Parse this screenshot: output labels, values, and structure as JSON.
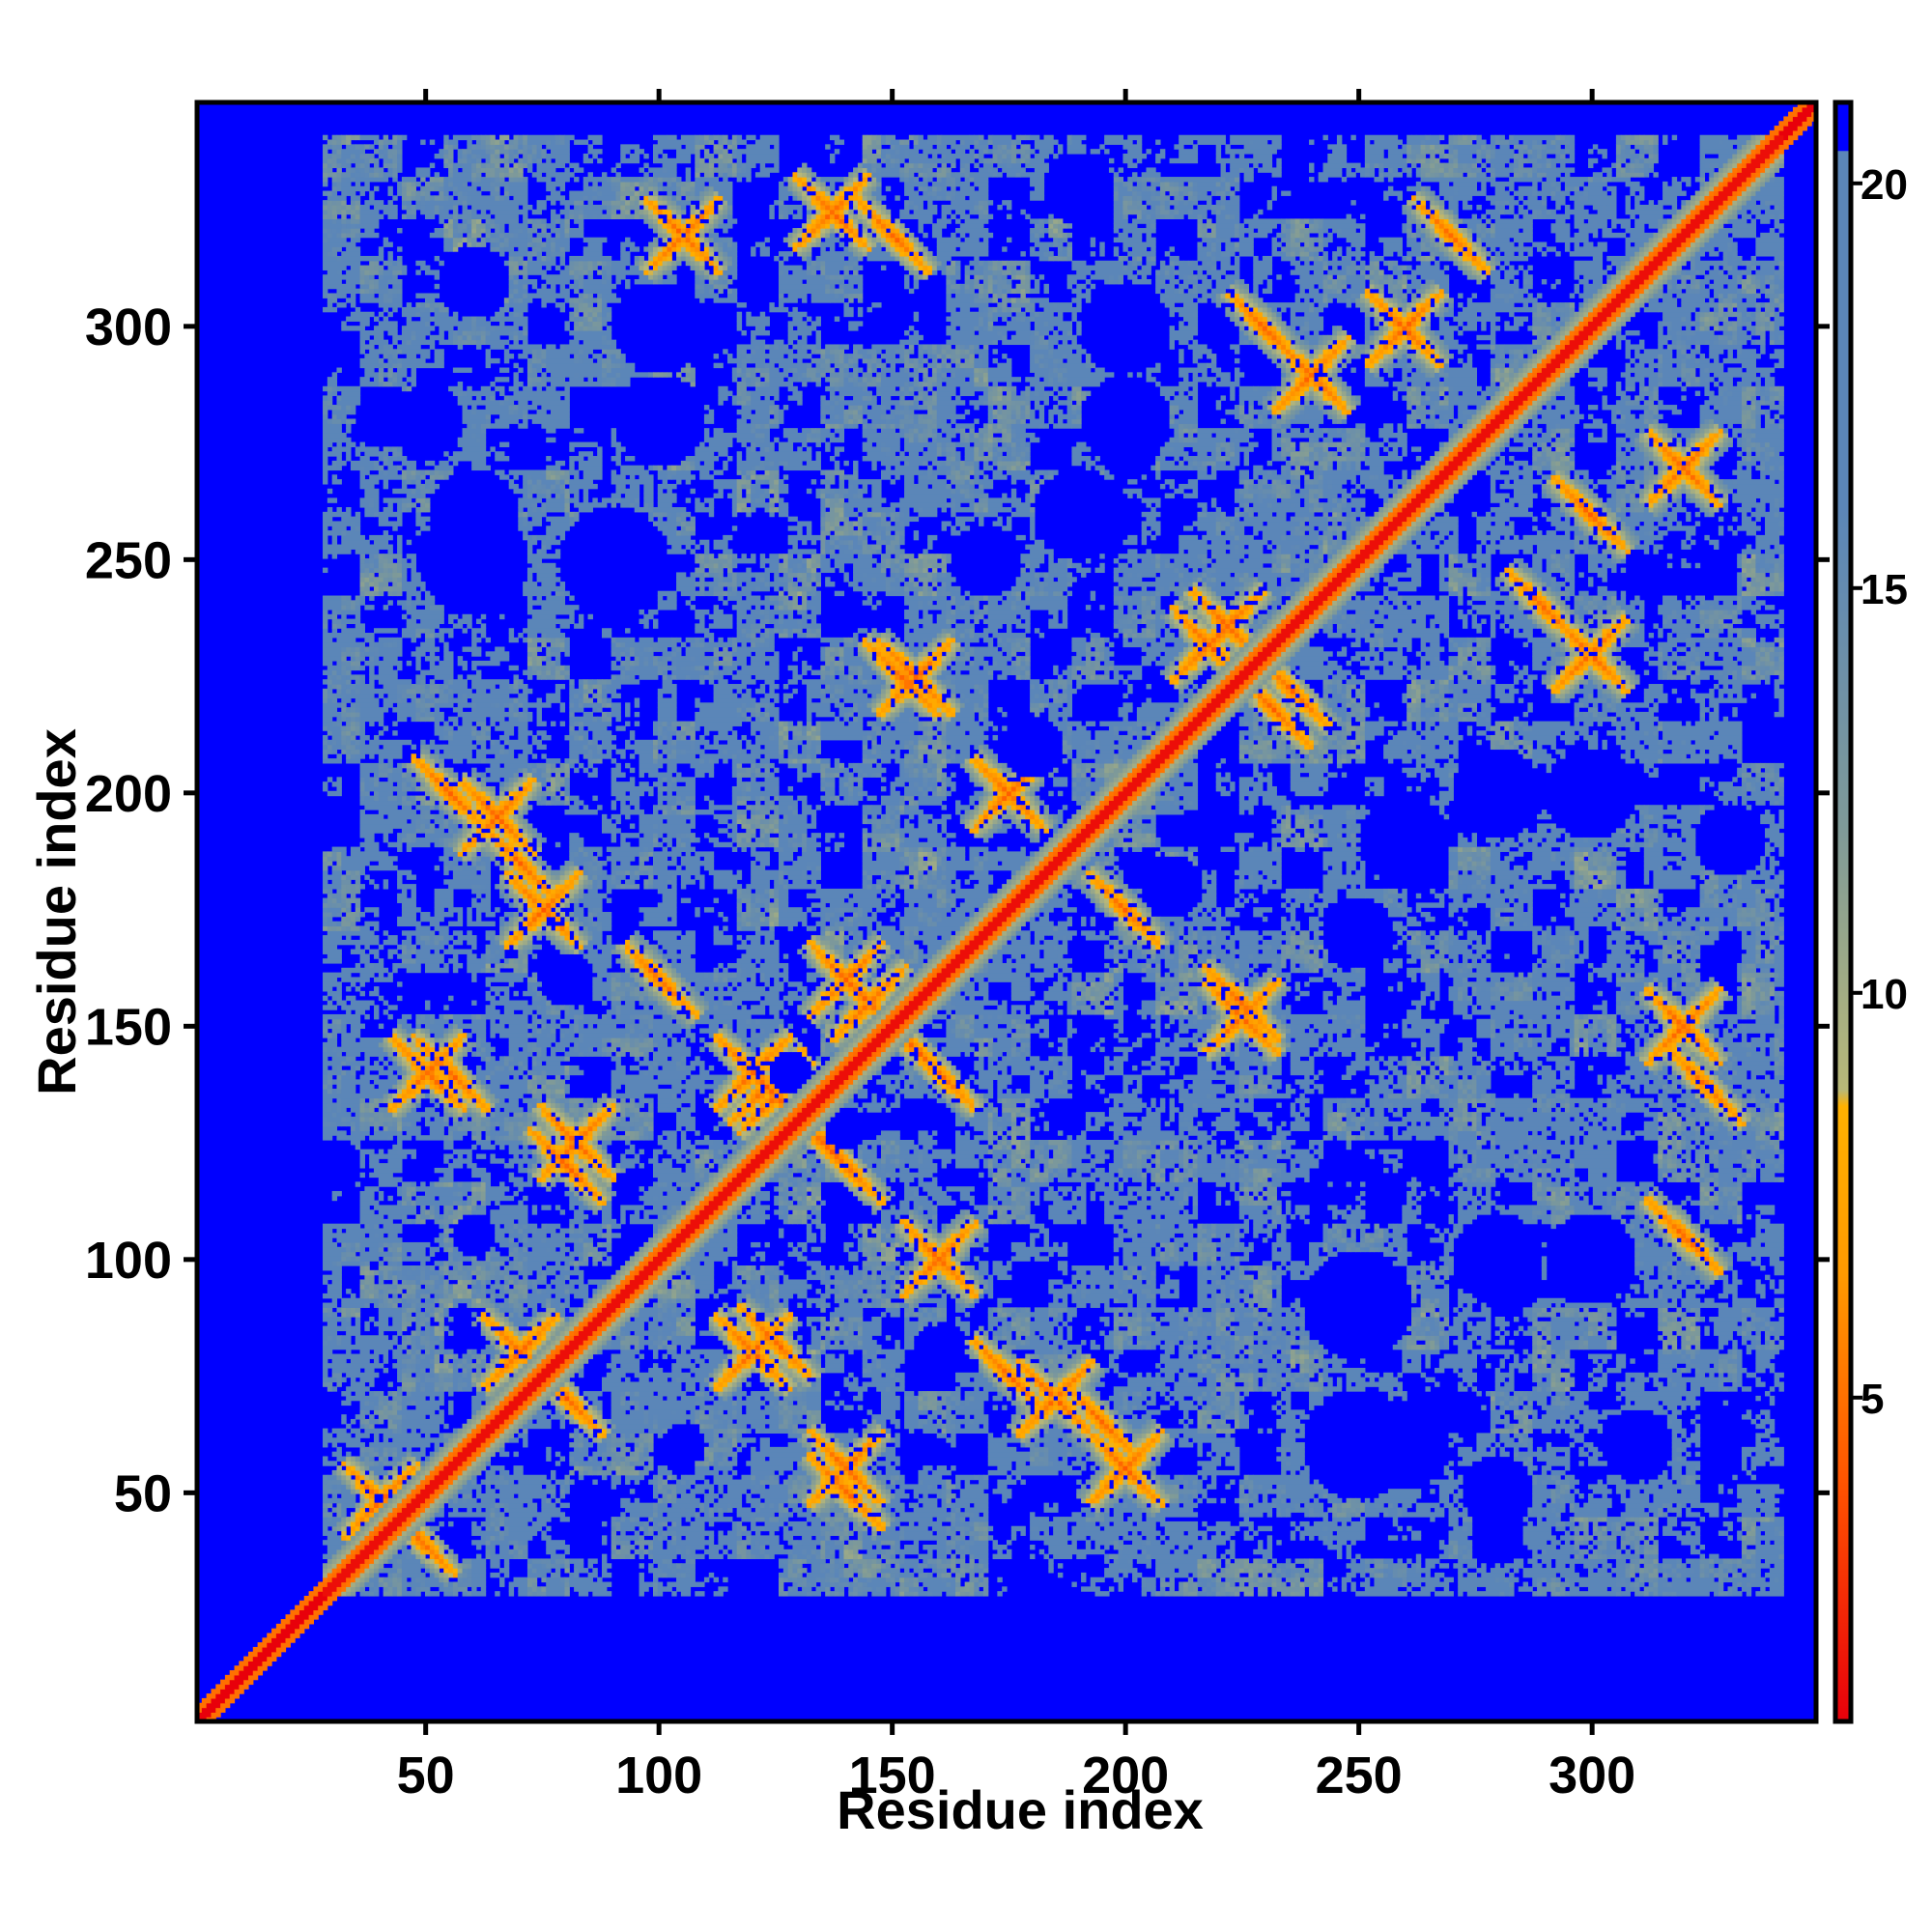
{
  "chart_data": {
    "type": "heatmap",
    "title": "",
    "xlabel": "Residue index",
    "ylabel": "Residue index",
    "xlim": [
      1,
      348
    ],
    "ylim": [
      1,
      348
    ],
    "x_ticks": [
      50,
      100,
      150,
      200,
      250,
      300
    ],
    "y_ticks": [
      50,
      100,
      150,
      200,
      250,
      300
    ],
    "n_residues": 348,
    "colorbar": {
      "range": [
        1,
        21
      ],
      "ticks": [
        5,
        10,
        15,
        20
      ],
      "stops": [
        {
          "value": 1,
          "color": "#e8000b"
        },
        {
          "value": 4,
          "color": "#ff5500"
        },
        {
          "value": 6.5,
          "color": "#ff9900"
        },
        {
          "value": 8.6,
          "color": "#ffb100"
        },
        {
          "value": 8.8,
          "color": "#b8b878"
        },
        {
          "value": 12,
          "color": "#7f9a98"
        },
        {
          "value": 16,
          "color": "#5b86b8"
        },
        {
          "value": 21,
          "color": "#5b86b8"
        }
      ]
    },
    "cutoff": 20,
    "background_color": "#0000ff",
    "contacts": [
      {
        "i": 125,
        "j": 135,
        "w": 3
      },
      {
        "i": 123,
        "j": 137,
        "w": 3
      },
      {
        "i": 120,
        "j": 140,
        "w": 3
      },
      {
        "i": 140,
        "j": 160,
        "w": 3
      },
      {
        "i": 145,
        "j": 155,
        "w": 3
      },
      {
        "i": 218,
        "j": 232,
        "w": 3
      },
      {
        "i": 222,
        "j": 236,
        "w": 3
      },
      {
        "i": 70,
        "j": 80,
        "w": 3
      },
      {
        "i": 40,
        "j": 48,
        "w": 3
      },
      {
        "i": 120,
        "j": 80,
        "w": 3
      },
      {
        "i": 200,
        "j": 55,
        "w": 4
      },
      {
        "i": 185,
        "j": 70,
        "w": 4
      },
      {
        "i": 160,
        "j": 100,
        "w": 4
      },
      {
        "i": 300,
        "j": 230,
        "w": 4
      },
      {
        "i": 320,
        "j": 270,
        "w": 4
      },
      {
        "i": 240,
        "j": 290,
        "w": 4
      },
      {
        "i": 260,
        "j": 300,
        "w": 4
      },
      {
        "i": 225,
        "j": 152,
        "w": 3
      },
      {
        "i": 82,
        "j": 125,
        "w": 3
      },
      {
        "i": 65,
        "j": 195,
        "w": 4
      },
      {
        "i": 75,
        "j": 175,
        "w": 4
      },
      {
        "i": 155,
        "j": 225,
        "w": 3
      },
      {
        "i": 175,
        "j": 200,
        "w": 4
      },
      {
        "i": 140,
        "j": 55,
        "w": 3
      },
      {
        "i": 105,
        "j": 320,
        "w": 4
      },
      {
        "i": 137,
        "j": 325,
        "w": 3
      },
      {
        "i": 50,
        "j": 140,
        "w": 3
      },
      {
        "i": 320,
        "j": 150,
        "w": 3
      }
    ],
    "far_regions": [
      {
        "i": 30,
        "j": 120,
        "r": 6
      },
      {
        "i": 20,
        "j": 80,
        "r": 8
      },
      {
        "i": 105,
        "j": 60,
        "r": 5
      },
      {
        "i": 128,
        "j": 140,
        "r": 5
      },
      {
        "i": 140,
        "j": 128,
        "r": 5
      },
      {
        "i": 160,
        "j": 80,
        "r": 6
      },
      {
        "i": 170,
        "j": 250,
        "r": 8
      },
      {
        "i": 180,
        "j": 210,
        "r": 7
      },
      {
        "i": 250,
        "j": 60,
        "r": 12
      },
      {
        "i": 280,
        "j": 100,
        "r": 10
      },
      {
        "i": 310,
        "j": 60,
        "r": 8
      },
      {
        "i": 100,
        "j": 300,
        "r": 10
      },
      {
        "i": 60,
        "j": 260,
        "r": 10
      },
      {
        "i": 90,
        "j": 250,
        "r": 12
      },
      {
        "i": 200,
        "j": 280,
        "r": 10
      },
      {
        "i": 300,
        "j": 200,
        "r": 10
      },
      {
        "i": 260,
        "j": 190,
        "r": 10
      },
      {
        "i": 330,
        "j": 190,
        "r": 8
      },
      {
        "i": 280,
        "j": 40,
        "r": 6
      },
      {
        "i": 50,
        "j": 280,
        "r": 8
      }
    ]
  }
}
